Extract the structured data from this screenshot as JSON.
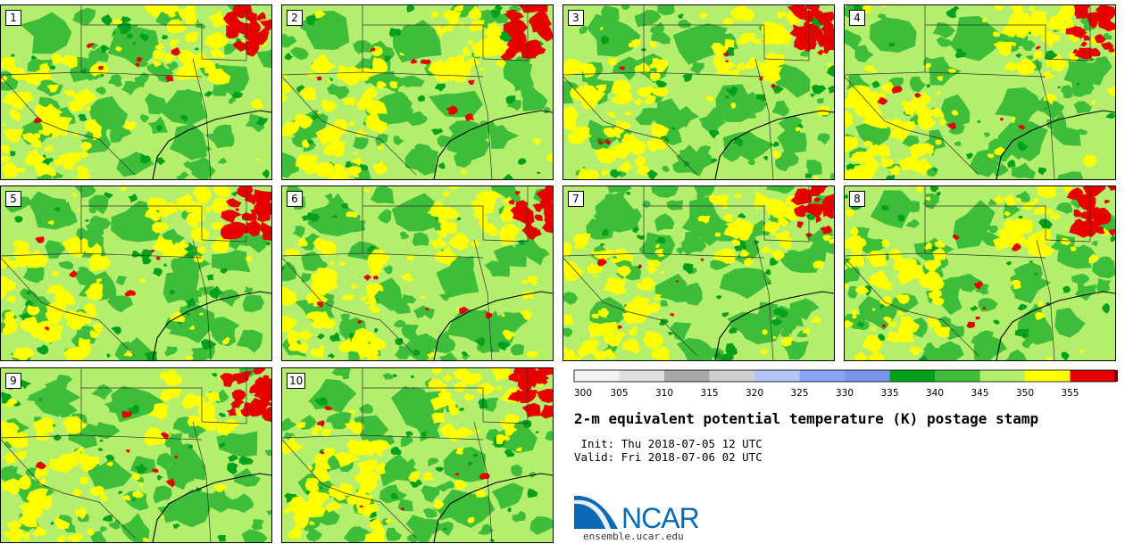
{
  "title": "2-m equivalent potential temperature (K) postage stamp",
  "init_label": "Init:",
  "init_value": "Thu 2018-07-05 12 UTC",
  "valid_label": "Valid:",
  "valid_value": "Fri 2018-07-06 02 UTC",
  "logo": {
    "name": "NCAR",
    "url": "ensemble.ucar.edu"
  },
  "members": [
    "1",
    "2",
    "3",
    "4",
    "5",
    "6",
    "7",
    "8",
    "9",
    "10"
  ],
  "colors": {
    "green_dark": "#05a11c",
    "green_mid": "#3ebd3b",
    "green_light": "#b3ee6d",
    "yellow": "#ffff00",
    "red": "#e70000",
    "logo_blue": "#0a6ab5"
  },
  "colorbar": {
    "ticks": [
      "300",
      "305",
      "310",
      "315",
      "320",
      "325",
      "330",
      "335",
      "340",
      "345",
      "350",
      "355"
    ],
    "colors": [
      "#f2f2f2",
      "#e0e0e0",
      "#a8a8a8",
      "#d0d0d0",
      "#b3c6fb",
      "#8aa4f6",
      "#7a94ee",
      "#05a11c",
      "#3ebd3b",
      "#b3ee6d",
      "#ffff00",
      "#e70000",
      "#860000"
    ]
  }
}
